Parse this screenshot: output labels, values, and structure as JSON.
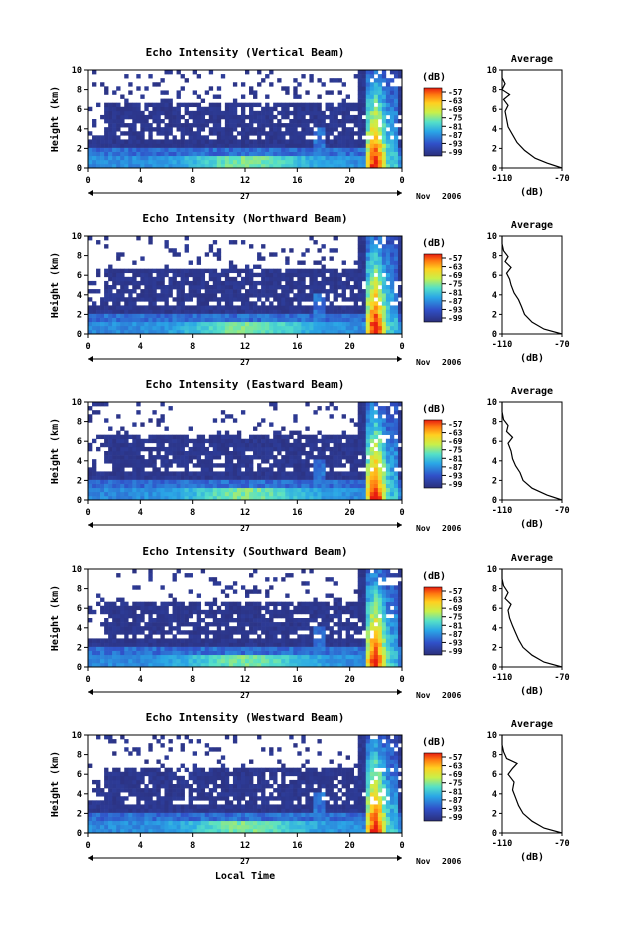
{
  "figure": {
    "x_label": "Local Time",
    "date_prefix": "Nov",
    "date_year": "2006",
    "day_label": "27",
    "y_label": "Height (km)",
    "colorbar_unit": "(dB)",
    "avg_title": "Average",
    "avg_xlabel": "(dB)"
  },
  "chart_data": [
    {
      "type": "heatmap",
      "title": "Echo Intensity (Vertical Beam)",
      "x_ticks": [
        "0",
        "4",
        "8",
        "12",
        "16",
        "20",
        "0"
      ],
      "xlim": [
        0,
        24
      ],
      "y_ticks": [
        "0",
        "2",
        "4",
        "6",
        "8",
        "10"
      ],
      "ylim": [
        0,
        10
      ],
      "colorbar_ticks": [
        "-57",
        "-63",
        "-69",
        "-75",
        "-81",
        "-87",
        "-93",
        "-99"
      ],
      "avg_x_ticks": [
        "-110",
        "-70"
      ],
      "avg_profile": [
        [
          -70,
          0
        ],
        [
          -80,
          0.5
        ],
        [
          -88,
          1
        ],
        [
          -95,
          1.8
        ],
        [
          -100,
          2.6
        ],
        [
          -103,
          3.4
        ],
        [
          -106,
          4.2
        ],
        [
          -107,
          5
        ],
        [
          -108,
          5.8
        ],
        [
          -106,
          6.4
        ],
        [
          -109,
          7
        ],
        [
          -105,
          7.5
        ],
        [
          -110,
          8
        ],
        [
          -108,
          8.6
        ],
        [
          -110,
          9.2
        ],
        [
          -110,
          10
        ]
      ]
    },
    {
      "type": "heatmap",
      "title": "Echo Intensity (Northward Beam)",
      "x_ticks": [
        "0",
        "4",
        "8",
        "12",
        "16",
        "20",
        "0"
      ],
      "xlim": [
        0,
        24
      ],
      "y_ticks": [
        "0",
        "2",
        "4",
        "6",
        "8",
        "10"
      ],
      "ylim": [
        0,
        10
      ],
      "colorbar_ticks": [
        "-57",
        "-63",
        "-69",
        "-75",
        "-81",
        "-87",
        "-93",
        "-99"
      ],
      "avg_x_ticks": [
        "-110",
        "-70"
      ],
      "avg_profile": [
        [
          -70,
          0
        ],
        [
          -82,
          0.5
        ],
        [
          -90,
          1.2
        ],
        [
          -95,
          2
        ],
        [
          -97,
          2.8
        ],
        [
          -99,
          3.5
        ],
        [
          -102,
          4.2
        ],
        [
          -104,
          5
        ],
        [
          -105,
          5.6
        ],
        [
          -107,
          6.2
        ],
        [
          -104,
          6.8
        ],
        [
          -108,
          7.4
        ],
        [
          -106,
          7.9
        ],
        [
          -109,
          8.5
        ],
        [
          -110,
          9.2
        ],
        [
          -110,
          10
        ]
      ]
    },
    {
      "type": "heatmap",
      "title": "Echo Intensity (Eastward Beam)",
      "x_ticks": [
        "0",
        "4",
        "8",
        "12",
        "16",
        "20",
        "0"
      ],
      "xlim": [
        0,
        24
      ],
      "y_ticks": [
        "0",
        "2",
        "4",
        "6",
        "8",
        "10"
      ],
      "ylim": [
        0,
        10
      ],
      "colorbar_ticks": [
        "-57",
        "-63",
        "-69",
        "-75",
        "-81",
        "-87",
        "-93",
        "-99"
      ],
      "avg_x_ticks": [
        "-110",
        "-70"
      ],
      "avg_profile": [
        [
          -70,
          0
        ],
        [
          -80,
          0.5
        ],
        [
          -90,
          1.2
        ],
        [
          -96,
          2
        ],
        [
          -98,
          2.8
        ],
        [
          -101,
          3.5
        ],
        [
          -103,
          4.2
        ],
        [
          -104,
          5
        ],
        [
          -106,
          5.8
        ],
        [
          -103,
          6.4
        ],
        [
          -107,
          7
        ],
        [
          -106,
          7.6
        ],
        [
          -109,
          8.2
        ],
        [
          -110,
          9
        ],
        [
          -110,
          10
        ]
      ]
    },
    {
      "type": "heatmap",
      "title": "Echo Intensity (Southward Beam)",
      "x_ticks": [
        "0",
        "4",
        "8",
        "12",
        "16",
        "20",
        "0"
      ],
      "xlim": [
        0,
        24
      ],
      "y_ticks": [
        "0",
        "2",
        "4",
        "6",
        "8",
        "10"
      ],
      "ylim": [
        0,
        10
      ],
      "colorbar_ticks": [
        "-57",
        "-63",
        "-69",
        "-75",
        "-81",
        "-87",
        "-93",
        "-99"
      ],
      "avg_x_ticks": [
        "-110",
        "-70"
      ],
      "avg_profile": [
        [
          -70,
          0
        ],
        [
          -82,
          0.5
        ],
        [
          -90,
          1.2
        ],
        [
          -96,
          2
        ],
        [
          -99,
          2.8
        ],
        [
          -101,
          3.5
        ],
        [
          -103,
          4.2
        ],
        [
          -105,
          5
        ],
        [
          -106,
          5.8
        ],
        [
          -104,
          6.4
        ],
        [
          -108,
          7
        ],
        [
          -106,
          7.6
        ],
        [
          -109,
          8.3
        ],
        [
          -110,
          9
        ],
        [
          -110,
          10
        ]
      ]
    },
    {
      "type": "heatmap",
      "title": "Echo Intensity (Westward Beam)",
      "x_ticks": [
        "0",
        "4",
        "8",
        "12",
        "16",
        "20",
        "0"
      ],
      "xlim": [
        0,
        24
      ],
      "y_ticks": [
        "0",
        "2",
        "4",
        "6",
        "8",
        "10"
      ],
      "ylim": [
        0,
        10
      ],
      "colorbar_ticks": [
        "-57",
        "-63",
        "-69",
        "-75",
        "-81",
        "-87",
        "-93",
        "-99"
      ],
      "avg_x_ticks": [
        "-110",
        "-70"
      ],
      "avg_profile": [
        [
          -70,
          0
        ],
        [
          -82,
          0.5
        ],
        [
          -90,
          1.2
        ],
        [
          -96,
          2
        ],
        [
          -99,
          2.8
        ],
        [
          -101,
          3.6
        ],
        [
          -103,
          4.4
        ],
        [
          -102,
          5.2
        ],
        [
          -106,
          6
        ],
        [
          -103,
          6.6
        ],
        [
          -100,
          7.1
        ],
        [
          -107,
          7.6
        ],
        [
          -109,
          8.3
        ],
        [
          -110,
          9
        ],
        [
          -110,
          10
        ]
      ]
    }
  ]
}
